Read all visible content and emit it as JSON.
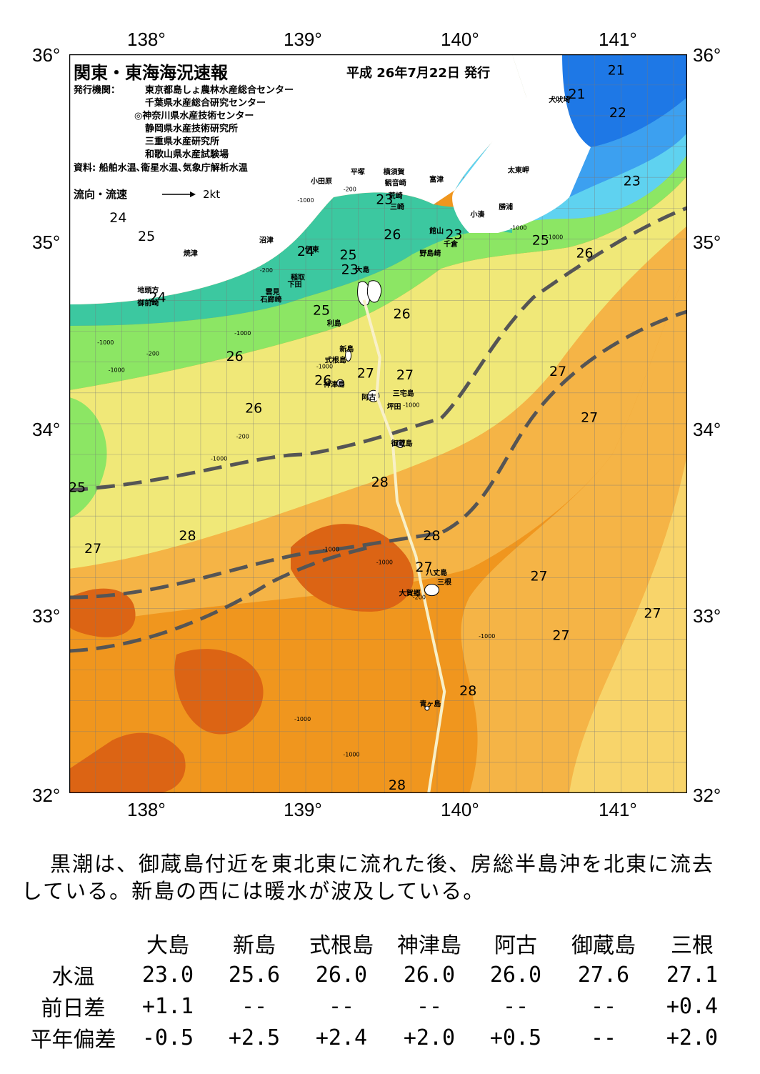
{
  "title": "関東・東海海況速報",
  "issue_date": "平成 26年7月22日 発行",
  "issuers_label": "発行機関：",
  "issuers": [
    "東京都島しょ農林水産総合センター",
    "千葉県水産総合研究センター",
    "◎神奈川県水産技術センター",
    "静岡県水産技術研究所",
    "三重県水産研究所",
    "和歌山県水産試験場"
  ],
  "sources": "資料: 船舶水温､衛星水温､気象庁解析水温",
  "flow_legend": "流向・流速",
  "flow_unit": "2kt",
  "lon_labels": [
    "138°",
    "139°",
    "140°",
    "141°"
  ],
  "lat_labels": [
    "36°",
    "35°",
    "34°",
    "33°",
    "32°"
  ],
  "colors": {
    "t21": "#1e78e6",
    "t22": "#3ca0f0",
    "t23": "#5fd2f0",
    "t24": "#3cc8a0",
    "t25": "#8ce664",
    "t26": "#f0e878",
    "t27": "#f5b446",
    "t28": "#f0961e",
    "t29": "#dc6414",
    "kuroshio": "#555555"
  },
  "isotherm_labels": [
    {
      "text": "21",
      "lon": 140.97,
      "lat": 35.89
    },
    {
      "text": "21",
      "lon": 140.72,
      "lat": 35.76
    },
    {
      "text": "22",
      "lon": 140.98,
      "lat": 35.66
    },
    {
      "text": "23",
      "lon": 141.07,
      "lat": 35.29
    },
    {
      "text": "25",
      "lon": 140.49,
      "lat": 34.97
    },
    {
      "text": "26",
      "lon": 140.77,
      "lat": 34.9
    },
    {
      "text": "24",
      "lon": 137.81,
      "lat": 35.09
    },
    {
      "text": "25",
      "lon": 137.99,
      "lat": 34.99
    },
    {
      "text": "24",
      "lon": 138.06,
      "lat": 34.66
    },
    {
      "text": "24",
      "lon": 139.0,
      "lat": 34.91
    },
    {
      "text": "25",
      "lon": 139.27,
      "lat": 34.89
    },
    {
      "text": "23",
      "lon": 139.28,
      "lat": 34.81
    },
    {
      "text": "26",
      "lon": 139.55,
      "lat": 35.0
    },
    {
      "text": "23",
      "lon": 139.5,
      "lat": 35.19
    },
    {
      "text": "23",
      "lon": 139.94,
      "lat": 35.0
    },
    {
      "text": "25",
      "lon": 139.1,
      "lat": 34.59
    },
    {
      "text": "26",
      "lon": 139.61,
      "lat": 34.57
    },
    {
      "text": "26",
      "lon": 138.55,
      "lat": 34.34
    },
    {
      "text": "26",
      "lon": 139.11,
      "lat": 34.21
    },
    {
      "text": "27",
      "lon": 139.38,
      "lat": 34.25
    },
    {
      "text": "27",
      "lon": 139.63,
      "lat": 34.24
    },
    {
      "text": "26",
      "lon": 138.67,
      "lat": 34.06
    },
    {
      "text": "27",
      "lon": 140.6,
      "lat": 34.26
    },
    {
      "text": "27",
      "lon": 140.8,
      "lat": 34.01
    },
    {
      "text": "28",
      "lon": 139.47,
      "lat": 33.66
    },
    {
      "text": "25",
      "lon": 137.55,
      "lat": 33.63
    },
    {
      "text": "28",
      "lon": 138.25,
      "lat": 33.37
    },
    {
      "text": "27",
      "lon": 137.65,
      "lat": 33.3
    },
    {
      "text": "28",
      "lon": 139.8,
      "lat": 33.37
    },
    {
      "text": "27",
      "lon": 139.75,
      "lat": 33.2
    },
    {
      "text": "27",
      "lon": 140.48,
      "lat": 33.15
    },
    {
      "text": "27",
      "lon": 141.2,
      "lat": 32.95
    },
    {
      "text": "27",
      "lon": 140.62,
      "lat": 32.83
    },
    {
      "text": "28",
      "lon": 140.03,
      "lat": 32.53
    },
    {
      "text": "28",
      "lon": 139.58,
      "lat": 32.02
    }
  ],
  "places": [
    {
      "text": "犬吠埼",
      "lon": 140.61,
      "lat": 35.74
    },
    {
      "text": "太東岬",
      "lon": 140.35,
      "lat": 35.36
    },
    {
      "text": "勝浦",
      "lon": 140.27,
      "lat": 35.16
    },
    {
      "text": "小湊",
      "lon": 140.09,
      "lat": 35.12
    },
    {
      "text": "富津",
      "lon": 139.83,
      "lat": 35.31
    },
    {
      "text": "横須賀",
      "lon": 139.56,
      "lat": 35.35
    },
    {
      "text": "観音崎",
      "lon": 139.57,
      "lat": 35.29
    },
    {
      "text": "荒崎",
      "lon": 139.57,
      "lat": 35.22
    },
    {
      "text": "三崎",
      "lon": 139.58,
      "lat": 35.16
    },
    {
      "text": "平塚",
      "lon": 139.33,
      "lat": 35.35
    },
    {
      "text": "小田原",
      "lon": 139.1,
      "lat": 35.3
    },
    {
      "text": "館山",
      "lon": 139.83,
      "lat": 35.03
    },
    {
      "text": "千倉",
      "lon": 139.92,
      "lat": 34.96
    },
    {
      "text": "野島崎",
      "lon": 139.79,
      "lat": 34.91
    },
    {
      "text": "沼津",
      "lon": 138.75,
      "lat": 34.98
    },
    {
      "text": "伊東",
      "lon": 139.04,
      "lat": 34.93
    },
    {
      "text": "焼津",
      "lon": 138.27,
      "lat": 34.91
    },
    {
      "text": "稲取",
      "lon": 138.95,
      "lat": 34.78
    },
    {
      "text": "下田",
      "lon": 138.93,
      "lat": 34.74
    },
    {
      "text": "雲見",
      "lon": 138.79,
      "lat": 34.7
    },
    {
      "text": "石廊崎",
      "lon": 138.78,
      "lat": 34.66
    },
    {
      "text": "地頭方",
      "lon": 138.0,
      "lat": 34.71
    },
    {
      "text": "御前崎",
      "lon": 138.0,
      "lat": 34.64
    },
    {
      "text": "大島",
      "lon": 139.36,
      "lat": 34.82
    },
    {
      "text": "利島",
      "lon": 139.18,
      "lat": 34.53
    },
    {
      "text": "新島",
      "lon": 139.26,
      "lat": 34.39
    },
    {
      "text": "式根島",
      "lon": 139.19,
      "lat": 34.33
    },
    {
      "text": "神津島",
      "lon": 139.18,
      "lat": 34.2
    },
    {
      "text": "三宅島",
      "lon": 139.62,
      "lat": 34.15
    },
    {
      "text": "阿古",
      "lon": 139.4,
      "lat": 34.13
    },
    {
      "text": "坪田",
      "lon": 139.56,
      "lat": 34.08
    },
    {
      "text": "御蔵島",
      "lon": 139.61,
      "lat": 33.88
    },
    {
      "text": "八丈島",
      "lon": 139.83,
      "lat": 33.18
    },
    {
      "text": "三根",
      "lon": 139.88,
      "lat": 33.13
    },
    {
      "text": "大賀郷",
      "lon": 139.66,
      "lat": 33.07
    },
    {
      "text": "青ヶ島",
      "lon": 139.79,
      "lat": 32.47
    }
  ],
  "depth_labels": [
    {
      "text": "-1000",
      "lon": 139.0,
      "lat": 35.2
    },
    {
      "text": "-200",
      "lon": 139.28,
      "lat": 35.26
    },
    {
      "text": "-200",
      "lon": 138.75,
      "lat": 34.82
    },
    {
      "text": "-1000",
      "lon": 138.6,
      "lat": 34.48
    },
    {
      "text": "-1000",
      "lon": 137.73,
      "lat": 34.43
    },
    {
      "text": "-200",
      "lon": 138.03,
      "lat": 34.37
    },
    {
      "text": "-1000",
      "lon": 137.8,
      "lat": 34.28
    },
    {
      "text": "-1000",
      "lon": 139.12,
      "lat": 34.3
    },
    {
      "text": "-1000",
      "lon": 139.67,
      "lat": 34.09
    },
    {
      "text": "-200",
      "lon": 138.6,
      "lat": 33.92
    },
    {
      "text": "-1000",
      "lon": 138.45,
      "lat": 33.8
    },
    {
      "text": "-1000",
      "lon": 139.16,
      "lat": 33.31
    },
    {
      "text": "-1000",
      "lon": 139.5,
      "lat": 33.24
    },
    {
      "text": "-200",
      "lon": 139.72,
      "lat": 33.05
    },
    {
      "text": "-1000",
      "lon": 140.15,
      "lat": 32.84
    },
    {
      "text": "-1000",
      "lon": 138.98,
      "lat": 32.39
    },
    {
      "text": "-1000",
      "lon": 139.29,
      "lat": 32.2
    },
    {
      "text": "-1000",
      "lon": 140.35,
      "lat": 35.05
    },
    {
      "text": "-1000",
      "lon": 140.58,
      "lat": 35.0
    }
  ],
  "summary": "黒潮は、御蔵島付近を東北東に流れた後、房総半島沖を北東に流去している。新島の西には暖水が波及している。",
  "table": {
    "row_labels": [
      "水温",
      "前日差",
      "平年偏差"
    ],
    "stations": [
      "大島",
      "新島",
      "式根島",
      "神津島",
      "阿古",
      "御蔵島",
      "三根"
    ],
    "water_temp": [
      "23.0",
      "25.6",
      "26.0",
      "26.0",
      "26.0",
      "27.6",
      "27.1"
    ],
    "day_diff": [
      "+1.1",
      "--",
      "--",
      "--",
      "--",
      "--",
      "+0.4"
    ],
    "normal_dev": [
      "-0.5",
      "+2.5",
      "+2.4",
      "+2.0",
      "+0.5",
      "--",
      "+2.0"
    ]
  }
}
